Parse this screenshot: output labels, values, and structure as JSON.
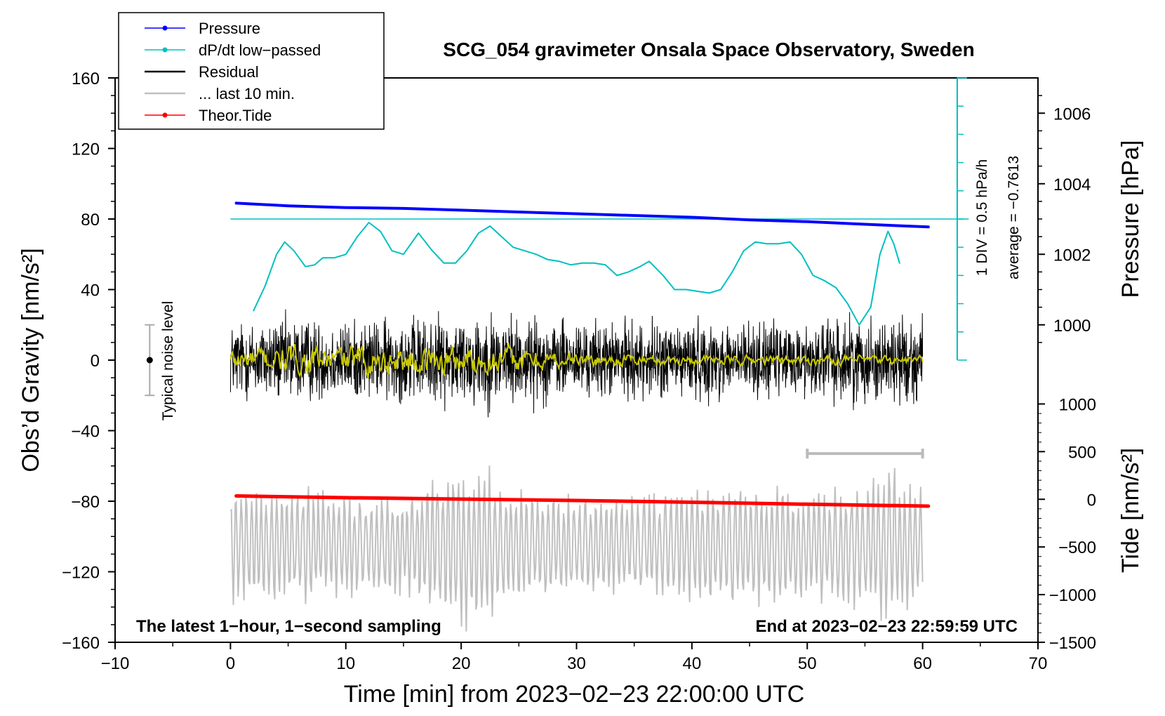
{
  "chart_data": {
    "type": "line",
    "title": "SCG_054 gravimeter Onsala Space Observatory, Sweden",
    "xlabel": "Time [min] from 2023−02−23 22:00:00 UTC",
    "ylabel_left": "Obs’d Gravity [nm/s²]",
    "ylabel_right_top": "Pressure [hPa]",
    "ylabel_right_bottom": "Tide [nm/s²]",
    "xlim": [
      -10,
      70
    ],
    "ylim_left": [
      -160,
      160
    ],
    "x_ticks": [
      "−10",
      "0",
      "10",
      "20",
      "30",
      "40",
      "50",
      "60",
      "70"
    ],
    "x_tick_values": [
      -10,
      0,
      10,
      20,
      30,
      40,
      50,
      60,
      70
    ],
    "y_ticks_left": [
      "160",
      "120",
      "80",
      "40",
      "0",
      "−40",
      "−80",
      "−120",
      "−160"
    ],
    "y_tick_values_left": [
      160,
      120,
      80,
      40,
      0,
      -40,
      -80,
      -120,
      -160
    ],
    "pressure_axis": {
      "ticks": [
        "1006",
        "1004",
        "1002",
        "1000"
      ],
      "values": [
        1006,
        1004,
        1002,
        1000
      ],
      "ref": {
        "gravity": 80,
        "hpa": 1003
      },
      "hpa_per_nms2": 0.05
    },
    "tide_axis": {
      "ticks": [
        "1000",
        "500",
        "0",
        "−500",
        "−1000",
        "−1500"
      ],
      "values": [
        1000,
        500,
        0,
        -500,
        -1000,
        -1500
      ],
      "ref": {
        "gravity": -160,
        "tide": -1500
      },
      "tide_per_nms2": 18.5
    },
    "legend": [
      {
        "label": "Pressure",
        "color": "#0000ff",
        "marker": true
      },
      {
        "label": "dP/dt low−passed",
        "color": "#00c0c0",
        "marker": true
      },
      {
        "label": "Residual",
        "color": "#000000",
        "marker": false
      },
      {
        "label": "... last 10 min.",
        "color": "#c0c0c0",
        "marker": false
      },
      {
        "label": "Theor.Tide",
        "color": "#ff0000",
        "marker": true
      }
    ],
    "annotations": {
      "bottom_left": "The latest 1−hour, 1−second sampling",
      "bottom_right": "End at 2023−02−23 22:59:59 UTC",
      "noise_label": "Typical noise level",
      "div_label": "1 DIV = 0.5 hPa/h",
      "average_label": "average = −0.7613"
    },
    "noise_bar": {
      "x": -7,
      "y": 0,
      "err": 20
    },
    "window_bar": {
      "x_start": 50,
      "x_end": 60,
      "y": -53
    },
    "dpdt_scale": {
      "x": 63,
      "y_bottom": 0,
      "y_top": 160,
      "divisions": 10,
      "ref_y": 80
    },
    "series": [
      {
        "name": "Pressure",
        "color": "#0000ff",
        "width": 4,
        "axis": "left",
        "x": [
          0.5,
          5,
          10,
          15,
          20,
          25,
          30,
          35,
          40,
          45,
          50,
          55,
          60.5
        ],
        "values": [
          89,
          87.5,
          86.5,
          86,
          85,
          84,
          83,
          82,
          81,
          79.5,
          78.5,
          77,
          75.5
        ]
      },
      {
        "name": "dP/dt low-passed",
        "color": "#00c0c0",
        "width": 2,
        "axis": "left",
        "x": [
          2,
          3,
          4,
          4.7,
          5.5,
          6.5,
          7.3,
          8,
          9,
          10,
          11,
          12,
          13,
          14,
          15,
          16.3,
          17.5,
          18.5,
          19.5,
          20.5,
          21.5,
          22.5,
          23.5,
          24.5,
          25.5,
          26.5,
          27.5,
          28.5,
          29.5,
          30.5,
          31.5,
          32.5,
          33.5,
          34.5,
          35.5,
          36.3,
          37.5,
          38.5,
          39.5,
          40.5,
          41.5,
          42.5,
          43.5,
          44.5,
          45.5,
          46.5,
          47.5,
          48.5,
          49.5,
          50.5,
          51.5,
          52.5,
          53.5,
          54.5,
          55.5,
          56.3,
          57,
          57.5,
          58
        ],
        "values": [
          28,
          42,
          60,
          67,
          62,
          53,
          54,
          58,
          58,
          60,
          70,
          78,
          73,
          62,
          60,
          72,
          62,
          55,
          55,
          62,
          72,
          76,
          70,
          64,
          62,
          60,
          57,
          56,
          54,
          55,
          55,
          54,
          48,
          50,
          53,
          56,
          48,
          40,
          40,
          39,
          38,
          40,
          50,
          62,
          67,
          66,
          66,
          67,
          60,
          48,
          45,
          41,
          32,
          20,
          30,
          60,
          73,
          66,
          55
        ]
      },
      {
        "name": "Theor.Tide",
        "color": "#ff0000",
        "width": 5,
        "axis": "left",
        "x": [
          0.5,
          10,
          20,
          30,
          40,
          50,
          60.5
        ],
        "values": [
          -77,
          -78,
          -78.8,
          -79.6,
          -80.6,
          -81.7,
          -82.8
        ]
      }
    ],
    "residual": {
      "x_start": 0,
      "x_end": 60,
      "n": 2400,
      "seed": 12345,
      "base": 0,
      "envelope": [
        [
          0,
          22
        ],
        [
          5,
          25
        ],
        [
          10,
          22
        ],
        [
          15,
          24
        ],
        [
          20,
          26
        ],
        [
          22,
          28
        ],
        [
          25,
          26
        ],
        [
          30,
          22
        ],
        [
          35,
          22
        ],
        [
          40,
          23
        ],
        [
          45,
          22
        ],
        [
          50,
          21
        ],
        [
          53,
          26
        ],
        [
          55,
          24
        ],
        [
          60,
          26
        ]
      ]
    },
    "residual_smooth": {
      "x_start": 0,
      "x_end": 60,
      "n": 720,
      "seed": 777,
      "color": "#c8c800",
      "envelope": [
        [
          0,
          5
        ],
        [
          10,
          6
        ],
        [
          15,
          6
        ],
        [
          20,
          7
        ],
        [
          25,
          5
        ],
        [
          30,
          3
        ],
        [
          40,
          2
        ],
        [
          50,
          2
        ],
        [
          60,
          2
        ]
      ]
    },
    "last10": {
      "x_start": 0,
      "x_end": 60,
      "n": 720,
      "seed": 4242,
      "color": "#c0c0c0",
      "base": -105,
      "envelope": [
        [
          0,
          35
        ],
        [
          5,
          35
        ],
        [
          10,
          32
        ],
        [
          15,
          30
        ],
        [
          20,
          52
        ],
        [
          22,
          48
        ],
        [
          25,
          34
        ],
        [
          30,
          30
        ],
        [
          35,
          32
        ],
        [
          40,
          34
        ],
        [
          45,
          40
        ],
        [
          50,
          32
        ],
        [
          55,
          38
        ],
        [
          57,
          48
        ],
        [
          60,
          36
        ]
      ]
    }
  }
}
